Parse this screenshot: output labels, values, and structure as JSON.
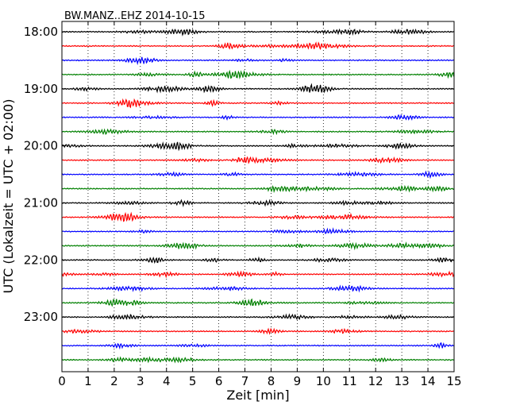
{
  "chart_data": {
    "type": "line",
    "title": "BW.MANZ..EHZ 2014-10-15",
    "xlabel": "Zeit  [min]",
    "ylabel": "UTC (Lokalzeit = UTC + 02:00)",
    "xlim": [
      0,
      15
    ],
    "x_ticks": [
      "0",
      "1",
      "2",
      "3",
      "4",
      "5",
      "6",
      "7",
      "8",
      "9",
      "10",
      "11",
      "12",
      "13",
      "14",
      "15"
    ],
    "y_ticks": [
      "18:00",
      "19:00",
      "20:00",
      "21:00",
      "22:00",
      "23:00"
    ],
    "grid": {
      "vertical_dotted": true
    },
    "trace_start": "18:00",
    "trace_interval_min": 15,
    "trace_count": 24,
    "trace_colors": [
      "#000000",
      "#ff0000",
      "#0000ff",
      "#008000"
    ],
    "series_note_visible": false
  }
}
